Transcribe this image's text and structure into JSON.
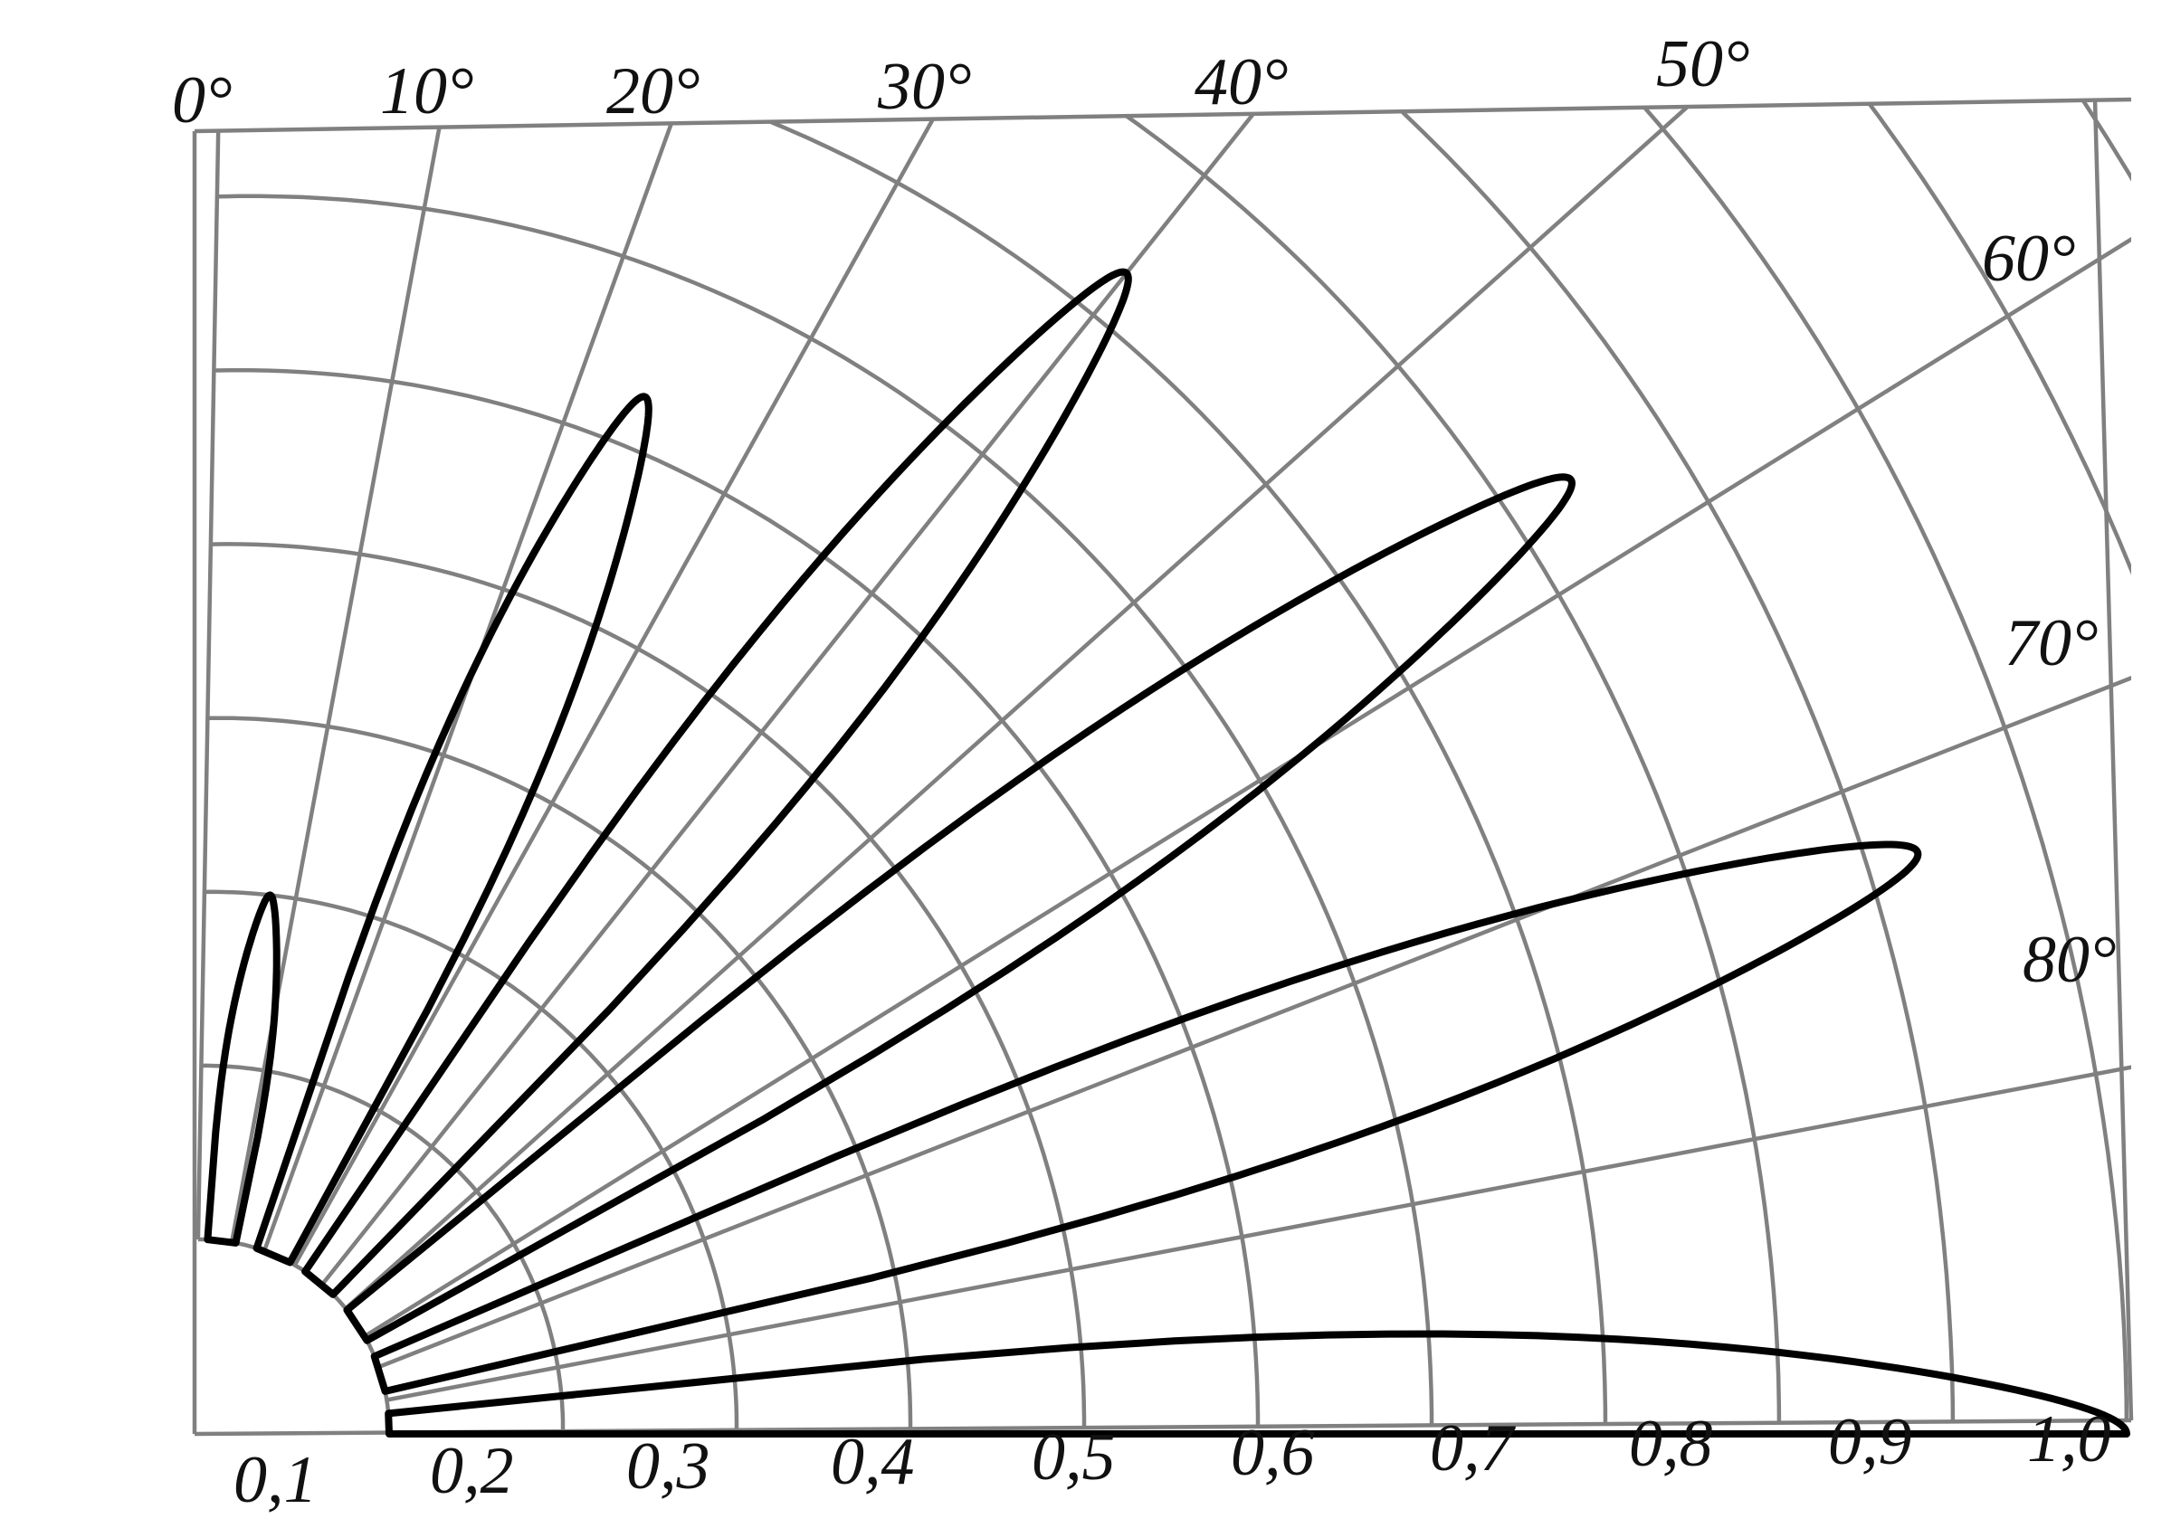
{
  "chart_data": {
    "type": "polar-line",
    "angle_unit": "degrees",
    "angle_range": [
      0,
      90
    ],
    "radial_range": [
      0,
      1.0
    ],
    "angle_ticks": [
      "0°",
      "10°",
      "20°",
      "30°",
      "40°",
      "50°",
      "60°",
      "70°",
      "80°"
    ],
    "radial_ticks": [
      "0,1",
      "0,2",
      "0,3",
      "0,4",
      "0,5",
      "0,6",
      "0,7",
      "0,8",
      "0,9",
      "1,0"
    ],
    "grid": true,
    "series": [
      {
        "peak_angle": 7,
        "peak_value": 0.2,
        "half_width_deg": 3.5
      },
      {
        "peak_angle": 23,
        "peak_value": 0.53,
        "half_width_deg": 4.5
      },
      {
        "peak_angle": 39,
        "peak_value": 0.73,
        "half_width_deg": 4.5
      },
      {
        "peak_angle": 56,
        "peak_value": 0.84,
        "half_width_deg": 4.5
      },
      {
        "peak_angle": 72,
        "peak_value": 0.93,
        "half_width_deg": 4.5
      },
      {
        "peak_angle": 90,
        "peak_value": 1.0,
        "half_width_deg": 5
      }
    ]
  }
}
